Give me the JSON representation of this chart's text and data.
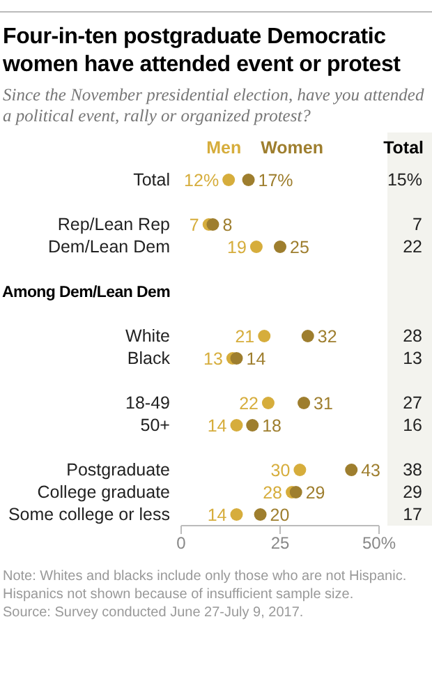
{
  "chart_data": {
    "type": "scatter",
    "title": "Four-in-ten postgraduate Democratic women have attended event or protest",
    "subtitle": "Since the November presidential election, have you attended a political event, rally or organized protest?",
    "orientation": "horizontal",
    "categories": [
      "Total",
      null,
      "Rep/Lean Rep",
      "Dem/Lean Dem",
      null,
      "Among Dem/Lean Dem",
      null,
      "White",
      "Black",
      null,
      "18-49",
      "50+",
      null,
      "Postgraduate",
      "College graduate",
      "Some college or less"
    ],
    "series": [
      {
        "name": "Men",
        "color": "#d6ad3c",
        "values": [
          12,
          null,
          7,
          19,
          null,
          null,
          null,
          21,
          13,
          null,
          22,
          14,
          null,
          30,
          28,
          14
        ],
        "value_labels": [
          "12%",
          null,
          "7",
          "19",
          null,
          null,
          null,
          "21",
          "13",
          null,
          "22",
          "14",
          null,
          "30",
          "28",
          "14"
        ]
      },
      {
        "name": "Women",
        "color": "#9e7e2e",
        "values": [
          17,
          null,
          8,
          25,
          null,
          null,
          null,
          32,
          14,
          null,
          31,
          18,
          null,
          43,
          29,
          20
        ],
        "value_labels": [
          "17%",
          null,
          "8",
          "25",
          null,
          null,
          null,
          "32",
          "14",
          null,
          "31",
          "18",
          null,
          "43",
          "29",
          "20"
        ]
      }
    ],
    "xlim": [
      0,
      50
    ],
    "xticks": [
      0,
      25,
      {
        "value": 50,
        "label": "50%"
      }
    ],
    "legend": "top",
    "marker": "circle",
    "grid": false,
    "y2label": "Total",
    "annotations": [
      "15%",
      "7",
      "22",
      "28",
      "13",
      "27",
      "16",
      "38",
      "29",
      "17",
      "Note: Whites and blacks include only those who are not Hispanic. Hispanics not shown because of insufficient sample size.",
      "Source: Survey conducted June 27-July 9, 2017."
    ]
  }
}
